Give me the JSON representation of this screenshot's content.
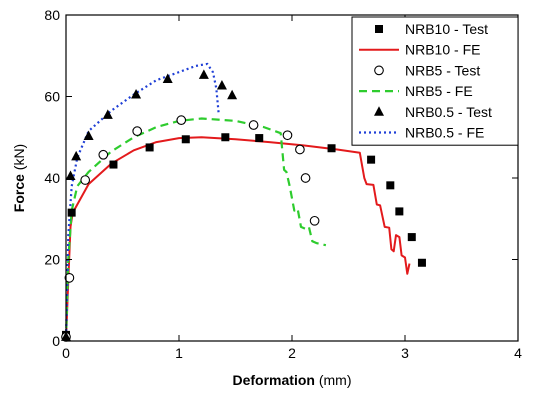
{
  "chart_data": {
    "type": "line",
    "xlabel_bold": "Deformation",
    "xlabel_unit": " (mm)",
    "ylabel_bold": "Force",
    "ylabel_unit": " (kN)",
    "xlim": [
      0,
      4
    ],
    "ylim": [
      0,
      80
    ],
    "xticks": [
      0,
      1,
      2,
      3,
      4
    ],
    "yticks": [
      0,
      20,
      40,
      60,
      80
    ],
    "grid": false,
    "legend_position": "top-right",
    "series": [
      {
        "name": "NRB10 - Test",
        "kind": "marker",
        "marker": "square-filled",
        "color": "#000000",
        "x": [
          0.0,
          0.05,
          0.42,
          0.74,
          1.06,
          1.41,
          1.71,
          2.35,
          2.7,
          2.87,
          2.95,
          3.06,
          3.15
        ],
        "y": [
          1.5,
          31.5,
          43.3,
          47.5,
          49.5,
          50.0,
          49.8,
          47.3,
          44.5,
          38.2,
          31.8,
          25.5,
          19.2
        ]
      },
      {
        "name": "NRB10 - FE",
        "kind": "line",
        "dash": "solid",
        "color": "#e31a1c",
        "x": [
          0.0,
          0.02,
          0.04,
          0.06,
          0.1,
          0.2,
          0.4,
          0.6,
          0.8,
          1.0,
          1.2,
          1.5,
          1.8,
          2.1,
          2.4,
          2.6,
          2.64,
          2.66,
          2.72,
          2.75,
          2.78,
          2.82,
          2.86,
          2.88,
          2.9,
          2.92,
          2.95,
          2.97,
          3.0,
          3.02,
          3.04
        ],
        "y": [
          0.0,
          15.0,
          28.0,
          31.5,
          33.5,
          38.5,
          43.5,
          46.8,
          48.8,
          49.8,
          50.0,
          49.5,
          48.8,
          48.0,
          47.0,
          46.2,
          40.0,
          38.5,
          38.3,
          33.5,
          33.3,
          28.0,
          27.8,
          22.5,
          22.0,
          26.0,
          25.5,
          21.0,
          20.5,
          16.5,
          19.0
        ]
      },
      {
        "name": "NRB5 - Test",
        "kind": "marker",
        "marker": "circle-open",
        "color": "#000000",
        "x": [
          0.0,
          0.03,
          0.17,
          0.33,
          0.63,
          1.02,
          1.66,
          1.96,
          2.07,
          2.12,
          2.2
        ],
        "y": [
          1.0,
          15.5,
          39.5,
          45.7,
          51.5,
          54.2,
          53.0,
          50.5,
          47.0,
          40.0,
          29.5
        ]
      },
      {
        "name": "NRB5 - FE",
        "kind": "line",
        "dash": "dashed",
        "color": "#2ecc2e",
        "x": [
          0.0,
          0.02,
          0.05,
          0.1,
          0.2,
          0.4,
          0.6,
          0.8,
          1.0,
          1.2,
          1.5,
          1.75,
          1.9,
          1.93,
          1.95,
          1.98,
          2.02,
          2.05,
          2.08,
          2.12,
          2.15,
          2.18,
          2.22,
          2.3
        ],
        "y": [
          0.0,
          20.0,
          32.0,
          38.0,
          41.5,
          46.5,
          50.0,
          52.5,
          54.0,
          54.6,
          54.0,
          52.5,
          51.0,
          42.0,
          41.5,
          38.0,
          32.0,
          32.5,
          28.0,
          27.5,
          28.0,
          24.5,
          24.0,
          23.5
        ]
      },
      {
        "name": "NRB0.5 - Test",
        "kind": "marker",
        "marker": "triangle-filled",
        "color": "#000000",
        "x": [
          0.0,
          0.04,
          0.09,
          0.2,
          0.37,
          0.62,
          0.9,
          1.22,
          1.38,
          1.47
        ],
        "y": [
          1.0,
          40.5,
          45.3,
          50.3,
          55.5,
          60.5,
          64.3,
          65.3,
          62.7,
          60.3
        ]
      },
      {
        "name": "NRB0.5 - FE",
        "kind": "line",
        "dash": "dotted",
        "color": "#1f3fd6",
        "x": [
          0.0,
          0.02,
          0.05,
          0.1,
          0.2,
          0.4,
          0.6,
          0.8,
          1.0,
          1.15,
          1.25,
          1.3,
          1.33,
          1.35
        ],
        "y": [
          0.0,
          26.0,
          38.0,
          45.0,
          51.5,
          56.5,
          60.5,
          64.0,
          66.0,
          67.5,
          68.0,
          66.0,
          62.0,
          56.0
        ]
      }
    ]
  }
}
